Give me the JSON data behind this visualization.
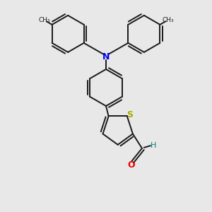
{
  "background_color": "#e8e8e8",
  "bond_color": "#1a1a1a",
  "N_color": "#0000ee",
  "S_color": "#aaaa00",
  "O_color": "#ee0000",
  "H_color": "#008080",
  "bond_width": 1.4,
  "dbo": 0.038,
  "figsize": [
    3.0,
    3.0
  ],
  "dpi": 100,
  "xlim": [
    -1.6,
    1.6
  ],
  "ylim": [
    -1.55,
    1.55
  ]
}
